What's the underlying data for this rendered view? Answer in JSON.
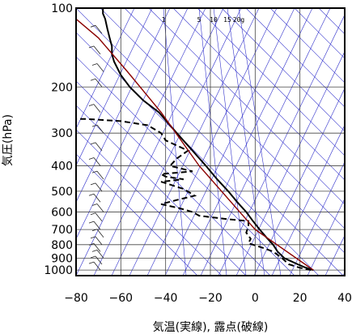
{
  "chart_data": {
    "type": "line",
    "title": "",
    "xlabel": "気温(実線), 露点(破線)",
    "ylabel": "気圧(hPa)",
    "xlim": [
      -80,
      40
    ],
    "ylim": [
      1050,
      100
    ],
    "yscale": "log",
    "x_ticks": [
      -80,
      -60,
      -40,
      -20,
      0,
      20,
      40
    ],
    "y_ticks": [
      100,
      200,
      300,
      400,
      500,
      600,
      700,
      800,
      900,
      1000
    ],
    "mixing_ratio_labels": [
      "1",
      "5",
      "10",
      "15",
      "20g"
    ],
    "mixing_ratio_values": [
      1,
      5,
      10,
      15,
      20
    ],
    "grid": true,
    "colors": {
      "guide_lines": "#3333cc",
      "adiabat": "#8b0000",
      "profile": "#000000"
    },
    "series": [
      {
        "style": "solid",
        "points": [
          [
            26,
            1000
          ],
          [
            22,
            975
          ],
          [
            19,
            950
          ],
          [
            16,
            925
          ],
          [
            13,
            900
          ],
          [
            10,
            850
          ],
          [
            8,
            800
          ],
          [
            5,
            750
          ],
          [
            2,
            700
          ],
          [
            -1,
            650
          ],
          [
            -4,
            600
          ],
          [
            -8,
            550
          ],
          [
            -12,
            500
          ],
          [
            -17,
            450
          ],
          [
            -22,
            400
          ],
          [
            -28,
            350
          ],
          [
            -35,
            300
          ],
          [
            -43,
            250
          ],
          [
            -50,
            225
          ],
          [
            -56,
            200
          ],
          [
            -60,
            180
          ],
          [
            -63,
            160
          ],
          [
            -64,
            150
          ],
          [
            -64,
            140
          ],
          [
            -65,
            130
          ],
          [
            -66,
            120
          ],
          [
            -67,
            110
          ],
          [
            -68,
            105
          ],
          [
            -68,
            100
          ]
        ]
      },
      {
        "style": "dashed",
        "points": [
          [
            25,
            1000
          ],
          [
            20,
            980
          ],
          [
            15,
            950
          ],
          [
            12,
            900
          ],
          [
            8,
            850
          ],
          [
            3,
            820
          ],
          [
            -3,
            790
          ],
          [
            -2,
            760
          ],
          [
            -4,
            720
          ],
          [
            -3,
            680
          ],
          [
            -3,
            650
          ],
          [
            -12,
            640
          ],
          [
            -25,
            620
          ],
          [
            -28,
            600
          ],
          [
            -34,
            580
          ],
          [
            -42,
            560
          ],
          [
            -35,
            540
          ],
          [
            -27,
            520
          ],
          [
            -32,
            490
          ],
          [
            -42,
            460
          ],
          [
            -32,
            450
          ],
          [
            -40,
            440
          ],
          [
            -42,
            430
          ],
          [
            -28,
            420
          ],
          [
            -38,
            400
          ],
          [
            -35,
            375
          ],
          [
            -30,
            350
          ],
          [
            -40,
            320
          ],
          [
            -42,
            300
          ],
          [
            -48,
            280
          ],
          [
            -60,
            270
          ],
          [
            -75,
            265
          ],
          [
            -80,
            265
          ]
        ]
      },
      {
        "style": "solid-thin",
        "points": [
          [
            26,
            1000
          ],
          [
            0,
            700
          ],
          [
            -25,
            400
          ],
          [
            -42,
            250
          ],
          [
            -57,
            175
          ],
          [
            -70,
            130
          ],
          [
            -80,
            110
          ]
        ]
      }
    ]
  }
}
